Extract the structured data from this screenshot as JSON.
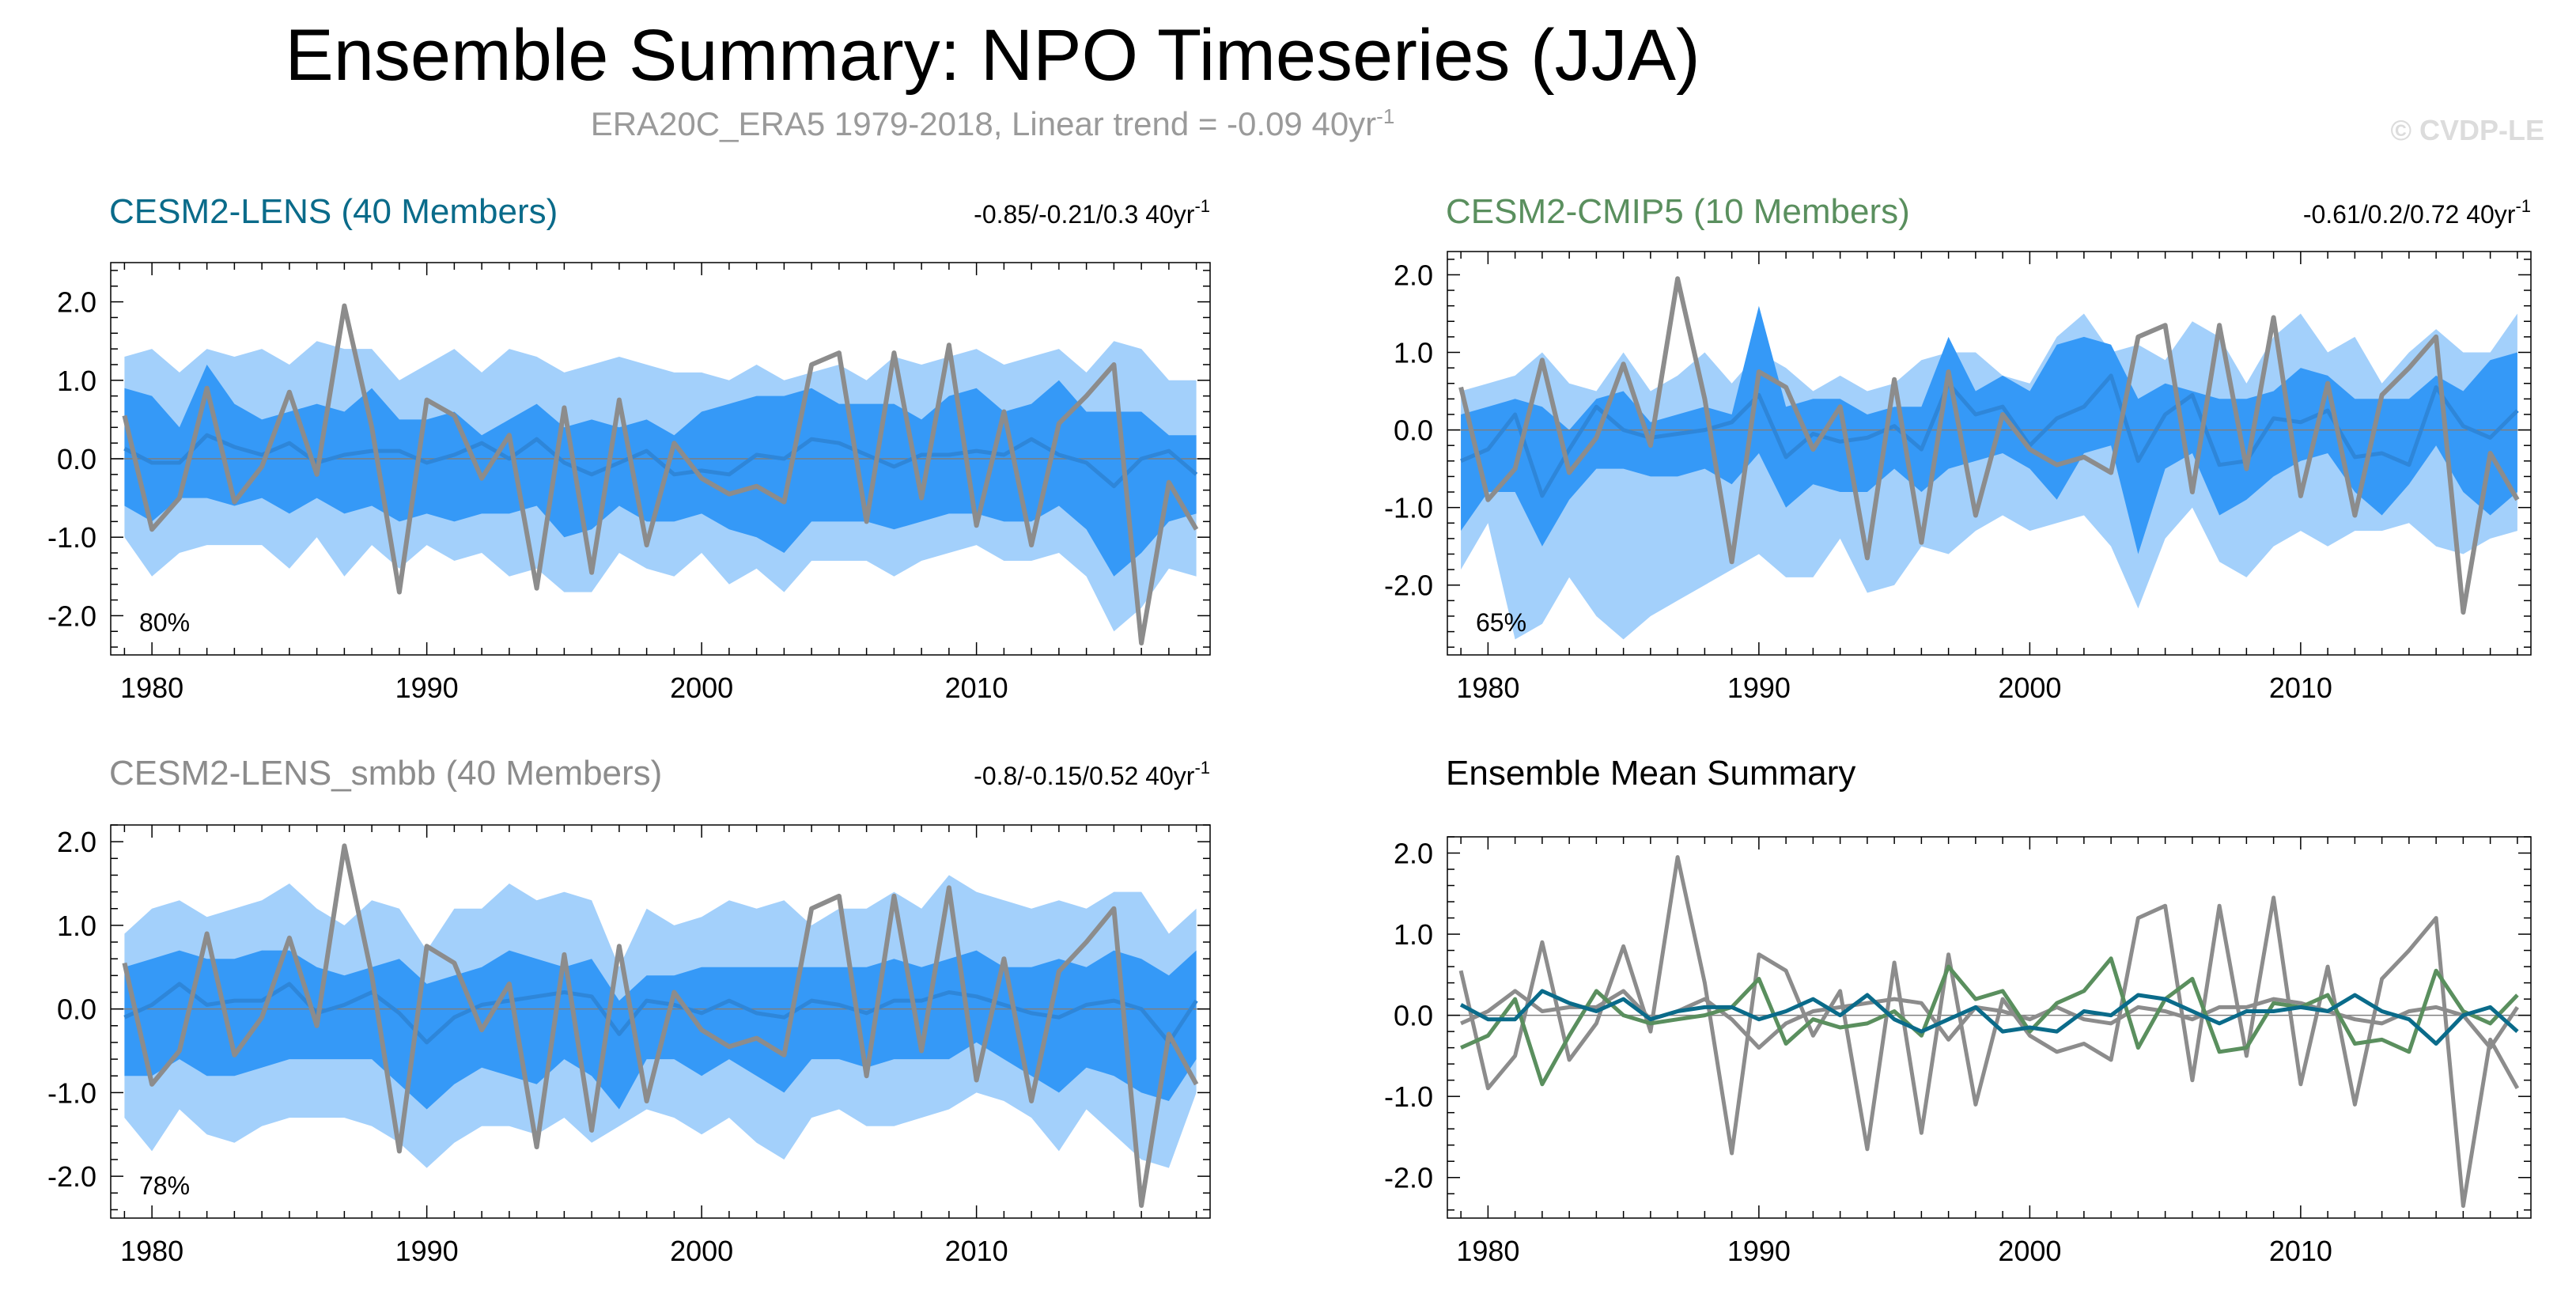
{
  "header": {
    "title": "Ensemble Summary: NPO Timeseries (JJA)",
    "subtitle_main": "ERA20C_ERA5 1979-2018, Linear trend = -0.09 40yr",
    "subtitle_sup": "-1",
    "watermark": "© CVDP-LE"
  },
  "colors": {
    "outer_band": "#a3d0fb",
    "inner_band": "#3599f7",
    "ens_mean_line": "#2e86d9",
    "observed": "#8c8c8c",
    "lens": "#0a6b8a",
    "cmip5": "#5a8f5e",
    "smbb": "#8c8c8c"
  },
  "chart_data": [
    {
      "type": "area",
      "title": "CESM2-LENS (40 Members)",
      "title_color": "#0a6b8a",
      "trend_label": "-0.85/-0.21/0.3 40yr",
      "trend_sup": "-1",
      "percent_label": "80%",
      "x": [
        1979,
        1980,
        1981,
        1982,
        1983,
        1984,
        1985,
        1986,
        1987,
        1988,
        1989,
        1990,
        1991,
        1992,
        1993,
        1994,
        1995,
        1996,
        1997,
        1998,
        1999,
        2000,
        2001,
        2002,
        2003,
        2004,
        2005,
        2006,
        2007,
        2008,
        2009,
        2010,
        2011,
        2012,
        2013,
        2014,
        2015,
        2016,
        2017,
        2018
      ],
      "xlim": [
        1978.5,
        2018.5
      ],
      "ylim": [
        -2.5,
        2.5
      ],
      "xticks": [
        1980,
        1990,
        2000,
        2010
      ],
      "yticks": [
        2.0,
        1.0,
        0.0,
        -1.0,
        -2.0
      ],
      "ytick_labels": [
        "2.0",
        "1.0",
        "0.0",
        "-1.0",
        "-2.0"
      ],
      "outer_upper": [
        1.3,
        1.4,
        1.1,
        1.4,
        1.3,
        1.4,
        1.2,
        1.5,
        1.4,
        1.4,
        1.0,
        1.2,
        1.4,
        1.1,
        1.4,
        1.3,
        1.1,
        1.2,
        1.3,
        1.2,
        1.1,
        1.1,
        1.0,
        1.2,
        1.0,
        1.1,
        1.2,
        1.0,
        1.3,
        1.2,
        1.3,
        1.4,
        1.2,
        1.3,
        1.4,
        1.1,
        1.5,
        1.4,
        1.0,
        1.0
      ],
      "outer_lower": [
        -1.0,
        -1.5,
        -1.2,
        -1.1,
        -1.1,
        -1.1,
        -1.4,
        -1.0,
        -1.5,
        -1.1,
        -1.4,
        -1.1,
        -1.3,
        -1.2,
        -1.5,
        -1.4,
        -1.7,
        -1.7,
        -1.2,
        -1.4,
        -1.5,
        -1.2,
        -1.6,
        -1.4,
        -1.7,
        -1.3,
        -1.3,
        -1.3,
        -1.5,
        -1.3,
        -1.2,
        -1.1,
        -1.3,
        -1.3,
        -1.2,
        -1.5,
        -2.2,
        -1.9,
        -1.4,
        -1.5
      ],
      "inner_upper": [
        0.9,
        0.8,
        0.4,
        1.2,
        0.7,
        0.5,
        0.6,
        0.7,
        0.6,
        0.9,
        0.5,
        0.5,
        0.6,
        0.3,
        0.5,
        0.7,
        0.4,
        0.5,
        0.4,
        0.5,
        0.3,
        0.6,
        0.7,
        0.8,
        0.8,
        0.9,
        0.7,
        0.7,
        0.7,
        0.5,
        0.8,
        0.9,
        0.6,
        0.7,
        1.0,
        0.6,
        0.6,
        0.6,
        0.3,
        0.3
      ],
      "inner_lower": [
        -0.6,
        -0.8,
        -0.5,
        -0.5,
        -0.6,
        -0.5,
        -0.7,
        -0.5,
        -0.7,
        -0.6,
        -0.8,
        -0.7,
        -0.8,
        -0.7,
        -0.7,
        -0.6,
        -1.0,
        -0.9,
        -0.6,
        -0.8,
        -0.8,
        -0.7,
        -0.9,
        -1.0,
        -1.2,
        -0.8,
        -0.8,
        -0.8,
        -0.9,
        -0.8,
        -0.7,
        -0.7,
        -0.8,
        -0.8,
        -0.6,
        -0.9,
        -1.5,
        -1.2,
        -0.8,
        -0.7
      ],
      "ens_mean": [
        0.13,
        -0.05,
        -0.05,
        0.3,
        0.15,
        0.05,
        0.2,
        -0.05,
        0.05,
        0.1,
        0.1,
        -0.05,
        0.05,
        0.2,
        0.0,
        0.25,
        -0.05,
        -0.2,
        -0.05,
        0.1,
        -0.2,
        -0.15,
        -0.2,
        0.05,
        0.0,
        0.25,
        0.2,
        0.05,
        -0.1,
        0.05,
        0.05,
        0.1,
        0.05,
        0.25,
        0.05,
        -0.05,
        -0.35,
        0.0,
        0.1,
        -0.2
      ],
      "observed": [
        0.55,
        -0.9,
        -0.5,
        0.9,
        -0.55,
        -0.1,
        0.85,
        -0.2,
        1.95,
        0.4,
        -1.7,
        0.75,
        0.55,
        -0.25,
        0.3,
        -1.65,
        0.65,
        -1.45,
        0.75,
        -1.1,
        0.2,
        -0.25,
        -0.45,
        -0.35,
        -0.55,
        1.2,
        1.35,
        -0.8,
        1.35,
        -0.5,
        1.45,
        -0.85,
        0.6,
        -1.1,
        0.45,
        0.8,
        1.2,
        -2.35,
        -0.3,
        -0.9
      ]
    },
    {
      "type": "area",
      "title": "CESM2-CMIP5 (10 Members)",
      "title_color": "#5a8f5e",
      "trend_label": "-0.61/0.2/0.72 40yr",
      "trend_sup": "-1",
      "percent_label": "65%",
      "x": [
        1979,
        1980,
        1981,
        1982,
        1983,
        1984,
        1985,
        1986,
        1987,
        1988,
        1989,
        1990,
        1991,
        1992,
        1993,
        1994,
        1995,
        1996,
        1997,
        1998,
        1999,
        2000,
        2001,
        2002,
        2003,
        2004,
        2005,
        2006,
        2007,
        2008,
        2009,
        2010,
        2011,
        2012,
        2013,
        2014,
        2015,
        2016,
        2017,
        2018
      ],
      "xlim": [
        1978.5,
        2018.5
      ],
      "ylim": [
        -2.9,
        2.3
      ],
      "xticks": [
        1980,
        1990,
        2000,
        2010
      ],
      "yticks": [
        2.0,
        1.0,
        0.0,
        -1.0,
        -2.0
      ],
      "ytick_labels": [
        "2.0",
        "1.0",
        "0.0",
        "-1.0",
        "-2.0"
      ],
      "outer_upper": [
        0.5,
        0.6,
        0.7,
        1.0,
        0.6,
        0.5,
        1.0,
        0.5,
        0.7,
        1.0,
        0.6,
        1.0,
        0.8,
        0.5,
        0.7,
        0.5,
        0.6,
        0.9,
        1.0,
        1.0,
        0.7,
        0.6,
        1.2,
        1.5,
        1.0,
        1.1,
        0.9,
        1.4,
        1.2,
        0.6,
        1.2,
        1.5,
        1.0,
        1.2,
        0.6,
        1.0,
        1.3,
        1.0,
        1.0,
        1.5
      ],
      "outer_lower": [
        -1.8,
        -1.2,
        -2.7,
        -2.5,
        -1.9,
        -2.4,
        -2.7,
        -2.4,
        -2.2,
        -2.0,
        -1.8,
        -1.6,
        -1.9,
        -1.9,
        -1.4,
        -2.1,
        -2.0,
        -1.5,
        -1.6,
        -1.3,
        -1.1,
        -1.3,
        -1.2,
        -1.1,
        -1.5,
        -2.3,
        -1.4,
        -1.0,
        -1.7,
        -1.9,
        -1.5,
        -1.3,
        -1.5,
        -1.3,
        -1.3,
        -1.2,
        -1.5,
        -1.6,
        -1.4,
        -1.3
      ],
      "inner_upper": [
        0.2,
        0.3,
        0.4,
        0.3,
        0.0,
        0.4,
        0.5,
        0.1,
        0.2,
        0.3,
        0.2,
        1.6,
        0.3,
        0.4,
        0.4,
        0.2,
        0.3,
        0.3,
        1.2,
        0.5,
        0.7,
        0.5,
        1.1,
        1.2,
        1.1,
        0.4,
        0.6,
        0.5,
        0.4,
        0.4,
        0.5,
        0.8,
        0.7,
        0.4,
        0.4,
        0.4,
        0.7,
        0.5,
        0.9,
        1.0
      ],
      "inner_lower": [
        -1.3,
        -0.8,
        -0.8,
        -1.5,
        -0.9,
        -0.5,
        -0.5,
        -0.6,
        -0.6,
        -0.5,
        -0.7,
        -0.3,
        -1.0,
        -0.7,
        -0.8,
        -0.8,
        -0.5,
        -0.8,
        -0.5,
        -0.4,
        -0.3,
        -0.5,
        -0.9,
        -0.3,
        -0.2,
        -1.6,
        -0.5,
        -0.3,
        -1.1,
        -0.9,
        -0.6,
        -0.4,
        -0.3,
        -0.8,
        -1.1,
        -0.7,
        -0.2,
        -0.8,
        -1.1,
        -0.8
      ],
      "ens_mean": [
        -0.4,
        -0.25,
        0.2,
        -0.85,
        -0.25,
        0.3,
        0.0,
        -0.1,
        -0.05,
        0.0,
        0.1,
        0.45,
        -0.35,
        -0.05,
        -0.15,
        -0.1,
        0.05,
        -0.25,
        0.6,
        0.2,
        0.3,
        -0.2,
        0.15,
        0.3,
        0.7,
        -0.4,
        0.2,
        0.45,
        -0.45,
        -0.4,
        0.15,
        0.1,
        0.25,
        -0.35,
        -0.3,
        -0.45,
        0.55,
        0.05,
        -0.1,
        0.25
      ],
      "observed": [
        0.55,
        -0.9,
        -0.5,
        0.9,
        -0.55,
        -0.1,
        0.85,
        -0.2,
        1.95,
        0.4,
        -1.7,
        0.75,
        0.55,
        -0.25,
        0.3,
        -1.65,
        0.65,
        -1.45,
        0.75,
        -1.1,
        0.2,
        -0.25,
        -0.45,
        -0.35,
        -0.55,
        1.2,
        1.35,
        -0.8,
        1.35,
        -0.5,
        1.45,
        -0.85,
        0.6,
        -1.1,
        0.45,
        0.8,
        1.2,
        -2.35,
        -0.3,
        -0.9
      ]
    },
    {
      "type": "area",
      "title": "CESM2-LENS_smbb (40 Members)",
      "title_color": "#8c8c8c",
      "trend_label": "-0.8/-0.15/0.52 40yr",
      "trend_sup": "-1",
      "percent_label": "78%",
      "x": [
        1979,
        1980,
        1981,
        1982,
        1983,
        1984,
        1985,
        1986,
        1987,
        1988,
        1989,
        1990,
        1991,
        1992,
        1993,
        1994,
        1995,
        1996,
        1997,
        1998,
        1999,
        2000,
        2001,
        2002,
        2003,
        2004,
        2005,
        2006,
        2007,
        2008,
        2009,
        2010,
        2011,
        2012,
        2013,
        2014,
        2015,
        2016,
        2017,
        2018
      ],
      "xlim": [
        1978.5,
        2018.5
      ],
      "ylim": [
        -2.5,
        2.2
      ],
      "xticks": [
        1980,
        1990,
        2000,
        2010
      ],
      "yticks": [
        2.0,
        1.0,
        0.0,
        -1.0,
        -2.0
      ],
      "ytick_labels": [
        "2.0",
        "1.0",
        "0.0",
        "-1.0",
        "-2.0"
      ],
      "outer_upper": [
        0.9,
        1.2,
        1.3,
        1.1,
        1.2,
        1.3,
        1.5,
        1.2,
        1.0,
        1.3,
        1.2,
        0.7,
        1.2,
        1.2,
        1.5,
        1.3,
        1.4,
        1.3,
        0.5,
        1.2,
        1.0,
        1.1,
        1.3,
        1.2,
        1.3,
        1.0,
        1.2,
        1.2,
        1.4,
        1.2,
        1.6,
        1.4,
        1.3,
        1.2,
        1.3,
        1.2,
        1.4,
        1.4,
        0.9,
        1.2
      ],
      "outer_lower": [
        -1.3,
        -1.7,
        -1.2,
        -1.5,
        -1.6,
        -1.4,
        -1.3,
        -1.3,
        -1.3,
        -1.4,
        -1.6,
        -1.9,
        -1.6,
        -1.4,
        -1.4,
        -1.5,
        -1.3,
        -1.6,
        -1.4,
        -1.2,
        -1.3,
        -1.5,
        -1.3,
        -1.6,
        -1.8,
        -1.3,
        -1.2,
        -1.4,
        -1.4,
        -1.3,
        -1.2,
        -1.0,
        -1.1,
        -1.3,
        -1.7,
        -1.2,
        -1.5,
        -1.8,
        -1.9,
        -1.0
      ],
      "inner_upper": [
        0.5,
        0.6,
        0.7,
        0.6,
        0.6,
        0.7,
        0.7,
        0.5,
        0.4,
        0.5,
        0.6,
        0.3,
        0.4,
        0.5,
        0.7,
        0.6,
        0.5,
        0.6,
        0.1,
        0.4,
        0.4,
        0.5,
        0.5,
        0.5,
        0.5,
        0.5,
        0.5,
        0.5,
        0.6,
        0.5,
        0.6,
        0.7,
        0.5,
        0.5,
        0.6,
        0.5,
        0.7,
        0.6,
        0.4,
        0.7
      ],
      "inner_lower": [
        -0.8,
        -0.8,
        -0.6,
        -0.8,
        -0.8,
        -0.7,
        -0.6,
        -0.6,
        -0.6,
        -0.6,
        -0.9,
        -1.2,
        -0.9,
        -0.7,
        -0.8,
        -0.9,
        -0.6,
        -0.8,
        -1.2,
        -0.6,
        -0.6,
        -0.8,
        -0.6,
        -0.8,
        -1.0,
        -0.6,
        -0.6,
        -0.7,
        -0.6,
        -0.6,
        -0.6,
        -0.4,
        -0.6,
        -0.8,
        -1.0,
        -0.7,
        -0.8,
        -1.0,
        -1.1,
        -0.6
      ],
      "ens_mean": [
        -0.1,
        0.05,
        0.3,
        0.05,
        0.1,
        0.1,
        0.3,
        -0.05,
        0.05,
        0.2,
        -0.05,
        -0.4,
        -0.1,
        0.05,
        0.1,
        0.15,
        0.2,
        0.15,
        -0.3,
        0.1,
        0.05,
        -0.05,
        0.1,
        -0.05,
        -0.1,
        0.1,
        0.05,
        -0.05,
        0.1,
        0.1,
        0.2,
        0.15,
        0.05,
        -0.05,
        -0.1,
        0.05,
        0.1,
        0.0,
        -0.4,
        0.1
      ],
      "observed": [
        0.55,
        -0.9,
        -0.5,
        0.9,
        -0.55,
        -0.1,
        0.85,
        -0.2,
        1.95,
        0.4,
        -1.7,
        0.75,
        0.55,
        -0.25,
        0.3,
        -1.65,
        0.65,
        -1.45,
        0.75,
        -1.1,
        0.2,
        -0.25,
        -0.45,
        -0.35,
        -0.55,
        1.2,
        1.35,
        -0.8,
        1.35,
        -0.5,
        1.45,
        -0.85,
        0.6,
        -1.1,
        0.45,
        0.8,
        1.2,
        -2.35,
        -0.3,
        -0.9
      ]
    },
    {
      "type": "line",
      "title": "Ensemble Mean Summary",
      "title_color": "#000000",
      "x": [
        1979,
        1980,
        1981,
        1982,
        1983,
        1984,
        1985,
        1986,
        1987,
        1988,
        1989,
        1990,
        1991,
        1992,
        1993,
        1994,
        1995,
        1996,
        1997,
        1998,
        1999,
        2000,
        2001,
        2002,
        2003,
        2004,
        2005,
        2006,
        2007,
        2008,
        2009,
        2010,
        2011,
        2012,
        2013,
        2014,
        2015,
        2016,
        2017,
        2018
      ],
      "xlim": [
        1978.5,
        2018.5
      ],
      "ylim": [
        -2.5,
        2.2
      ],
      "xticks": [
        1980,
        1990,
        2000,
        2010
      ],
      "yticks": [
        2.0,
        1.0,
        0.0,
        -1.0,
        -2.0
      ],
      "ytick_labels": [
        "2.0",
        "1.0",
        "0.0",
        "-1.0",
        "-2.0"
      ],
      "series": [
        {
          "color": "#8c8c8c",
          "values": [
            0.55,
            -0.9,
            -0.5,
            0.9,
            -0.55,
            -0.1,
            0.85,
            -0.2,
            1.95,
            0.4,
            -1.7,
            0.75,
            0.55,
            -0.25,
            0.3,
            -1.65,
            0.65,
            -1.45,
            0.75,
            -1.1,
            0.2,
            -0.25,
            -0.45,
            -0.35,
            -0.55,
            1.2,
            1.35,
            -0.8,
            1.35,
            -0.5,
            1.45,
            -0.85,
            0.6,
            -1.1,
            0.45,
            0.8,
            1.2,
            -2.35,
            -0.3,
            -0.9
          ]
        },
        {
          "color": "#8c8c8c",
          "values": [
            -0.1,
            0.05,
            0.3,
            0.05,
            0.1,
            0.1,
            0.3,
            -0.05,
            0.05,
            0.2,
            -0.05,
            -0.4,
            -0.1,
            0.05,
            0.1,
            0.15,
            0.2,
            0.15,
            -0.3,
            0.1,
            0.05,
            -0.05,
            0.1,
            -0.05,
            -0.1,
            0.1,
            0.05,
            -0.05,
            0.1,
            0.1,
            0.2,
            0.15,
            0.05,
            -0.05,
            -0.1,
            0.05,
            0.1,
            0.0,
            -0.4,
            0.1
          ]
        },
        {
          "color": "#5a8f5e",
          "values": [
            -0.4,
            -0.25,
            0.2,
            -0.85,
            -0.25,
            0.3,
            0.0,
            -0.1,
            -0.05,
            0.0,
            0.1,
            0.45,
            -0.35,
            -0.05,
            -0.15,
            -0.1,
            0.05,
            -0.25,
            0.6,
            0.2,
            0.3,
            -0.2,
            0.15,
            0.3,
            0.7,
            -0.4,
            0.2,
            0.45,
            -0.45,
            -0.4,
            0.15,
            0.1,
            0.25,
            -0.35,
            -0.3,
            -0.45,
            0.55,
            0.05,
            -0.1,
            0.25
          ]
        },
        {
          "color": "#0a6b8a",
          "values": [
            0.13,
            -0.05,
            -0.05,
            0.3,
            0.15,
            0.05,
            0.2,
            -0.05,
            0.05,
            0.1,
            0.1,
            -0.05,
            0.05,
            0.2,
            0.0,
            0.25,
            -0.05,
            -0.2,
            -0.05,
            0.1,
            -0.2,
            -0.15,
            -0.2,
            0.05,
            0.0,
            0.25,
            0.2,
            0.05,
            -0.1,
            0.05,
            0.05,
            0.1,
            0.05,
            0.25,
            0.05,
            -0.05,
            -0.35,
            0.0,
            0.1,
            -0.2
          ]
        }
      ]
    }
  ]
}
